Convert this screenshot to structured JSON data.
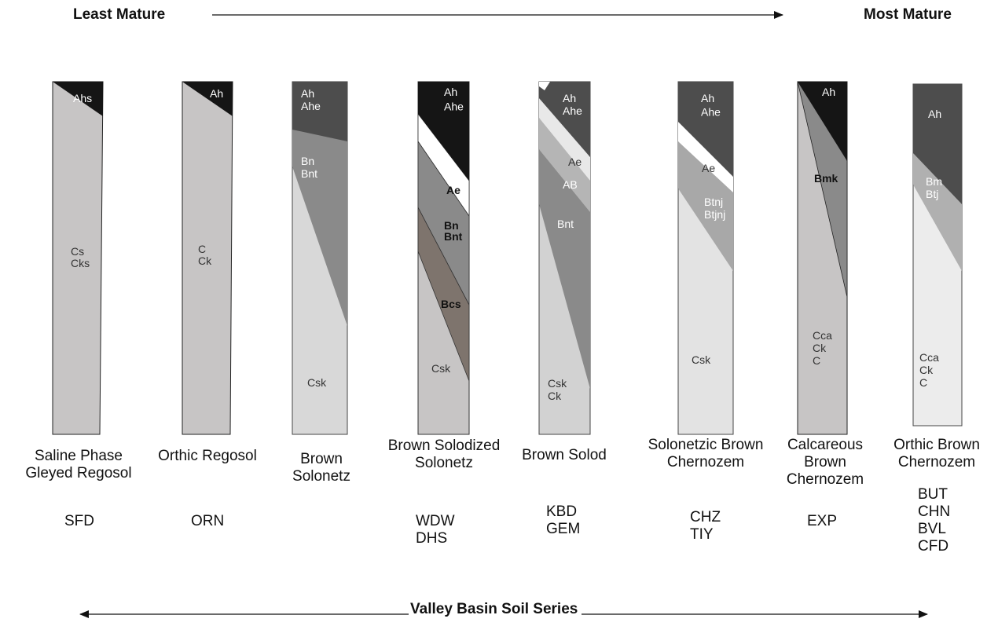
{
  "header": {
    "left_label": "Least Mature",
    "right_label": "Most  Mature"
  },
  "footer": {
    "title": "Valley Basin Soil Series"
  },
  "colors": {
    "dark": "#151515",
    "medium_dark": "#4d4d4d",
    "medium": "#8a8a8a",
    "light_gray": "#c7c5c5",
    "pale": "#d8d8d8",
    "brown_gray": "#7e746d",
    "white": "#ffffff"
  },
  "profiles": [
    {
      "name": "Saline Phase\nGleyed Regosol",
      "series": "SFD",
      "horizons": {
        "top": "Ahs",
        "main": "Cs\nCks"
      }
    },
    {
      "name": "Orthic Regosol",
      "series": "ORN",
      "horizons": {
        "top": "Ah",
        "main": "C\nCk"
      }
    },
    {
      "name": "Brown\nSolonetz",
      "series": "",
      "horizons": {
        "top": "Ah\nAhe",
        "middle": "Bn\nBnt",
        "bottom": "Csk"
      }
    },
    {
      "name": "Brown Solodized\nSolonetz",
      "series": "WDW\nDHS",
      "horizons": {
        "top": "Ah\nAhe",
        "ae": "Ae",
        "middle": "Bn\nBnt",
        "bcs": "Bcs",
        "bottom": "Csk"
      }
    },
    {
      "name": "Brown Solod",
      "series": "KBD\nGEM",
      "horizons": {
        "top": "Ah\nAhe",
        "ae": "Ae",
        "ab": "AB",
        "middle": "Bnt",
        "bottom": "Csk\nCk"
      }
    },
    {
      "name": "Solonetzic Brown\nChernozem",
      "series": "CHZ\nTIY",
      "horizons": {
        "top": "Ah\nAhe",
        "ae": "Ae",
        "middle": "Btnj\nBtjnj",
        "bottom": "Csk"
      }
    },
    {
      "name": "Calcareous\nBrown\nChernozem",
      "series": "EXP",
      "horizons": {
        "top": "Ah",
        "middle": "Bmk",
        "bottom": "Cca\nCk\nC"
      }
    },
    {
      "name": "Orthic  Brown\nChernozem",
      "series": "BUT\nCHN\nBVL\nCFD",
      "horizons": {
        "top": "Ah",
        "middle": "Bm\nBtj",
        "bottom": "Cca\nCk\nC"
      }
    }
  ]
}
